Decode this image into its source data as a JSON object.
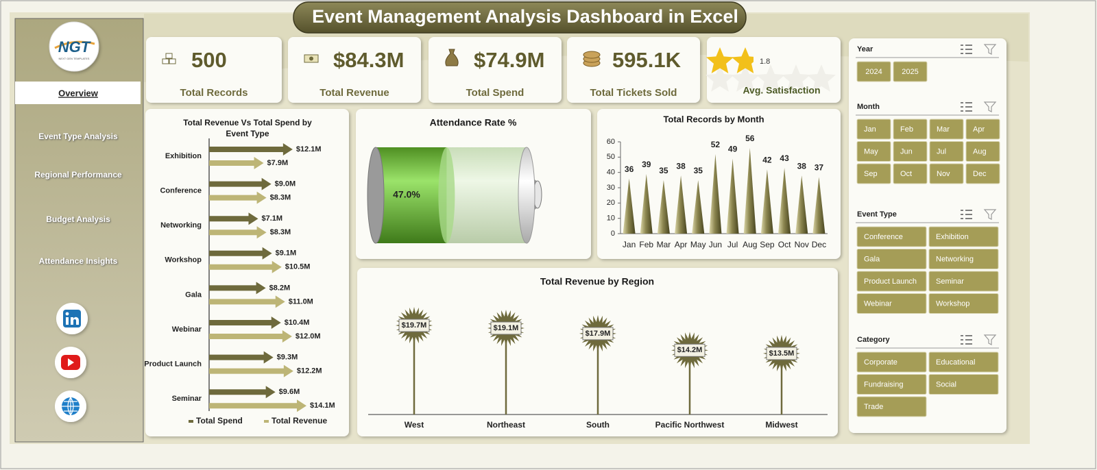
{
  "title": "Event Management Analysis Dashboard in Excel",
  "logo": {
    "text": "NGT",
    "tagline": "NEXT GEN TEMPLATES"
  },
  "nav": [
    "Overview",
    "Event Type Analysis",
    "Regional Performance",
    "Budget Analysis",
    "Attendance Insights"
  ],
  "kpis": [
    {
      "value": "500",
      "label": "Total Records"
    },
    {
      "value": "$84.3M",
      "label": "Total Revenue"
    },
    {
      "value": "$74.9M",
      "label": "Total Spend"
    },
    {
      "value": "595.1K",
      "label": "Total Tickets Sold"
    }
  ],
  "satisfaction": {
    "value": 1.8,
    "label": "Avg. Satisfaction"
  },
  "chart_data": [
    {
      "type": "arrowbar",
      "title": "Total Revenue Vs Total Spend by Event Type",
      "categories": [
        "Exhibition",
        "Conference",
        "Networking",
        "Workshop",
        "Gala",
        "Webinar",
        "Product Launch",
        "Seminar"
      ],
      "series": [
        {
          "name": "Total Spend",
          "color": "#6e6a3c",
          "values": [
            12.1,
            9.0,
            7.1,
            9.1,
            8.2,
            10.4,
            9.3,
            9.6
          ],
          "value_labels": [
            "$12.1M",
            "$9.0M",
            "$7.1M",
            "$9.1M",
            "$8.2M",
            "$10.4M",
            "$9.3M",
            "$9.6M"
          ]
        },
        {
          "name": "Total Revenue",
          "color": "#bdb576",
          "values": [
            7.9,
            8.3,
            8.3,
            10.5,
            11.0,
            12.0,
            12.2,
            14.1
          ],
          "value_labels": [
            "$7.9M",
            "$8.3M",
            "$8.3M",
            "$10.5M",
            "$11.0M",
            "$12.0M",
            "$12.2M",
            "$14.1M"
          ]
        }
      ],
      "legend": "bottom"
    },
    {
      "type": "battery",
      "title": "Attendance Rate %",
      "values": [
        47.0
      ],
      "value_labels": [
        "47.0%"
      ],
      "color": "#79c043"
    },
    {
      "type": "cone",
      "title": "Total Records by Month",
      "categories": [
        "Jan",
        "Feb",
        "Mar",
        "Apr",
        "May",
        "Jun",
        "Jul",
        "Aug",
        "Sep",
        "Oct",
        "Nov",
        "Dec"
      ],
      "values": [
        36,
        39,
        35,
        38,
        35,
        52,
        49,
        56,
        42,
        43,
        38,
        37
      ],
      "ylim": [
        0,
        60
      ],
      "yticks": [
        0,
        10,
        20,
        30,
        40,
        50,
        60
      ],
      "color": "#6e6a3c"
    },
    {
      "type": "lollipop",
      "title": "Total Revenue by Region",
      "categories": [
        "West",
        "Northeast",
        "South",
        "Pacific Northwest",
        "Midwest"
      ],
      "values": [
        19.7,
        19.1,
        17.9,
        14.2,
        13.5
      ],
      "value_labels": [
        "$19.7M",
        "$19.1M",
        "$17.9M",
        "$14.2M",
        "$13.5M"
      ],
      "color": "#6e6a3c"
    }
  ],
  "slicers": [
    {
      "title": "Year",
      "items": [
        "2024",
        "2025"
      ]
    },
    {
      "title": "Month",
      "items": [
        "Jan",
        "Feb",
        "Mar",
        "Apr",
        "May",
        "Jun",
        "Jul",
        "Aug",
        "Sep",
        "Oct",
        "Nov",
        "Dec"
      ]
    },
    {
      "title": "Event Type",
      "items": [
        "Conference",
        "Exhibition",
        "Gala",
        "Networking",
        "Product Launch",
        "Seminar",
        "Webinar",
        "Workshop"
      ]
    },
    {
      "title": "Category",
      "items": [
        "Corporate",
        "Educational",
        "Fundraising",
        "Social",
        "Trade"
      ]
    }
  ]
}
